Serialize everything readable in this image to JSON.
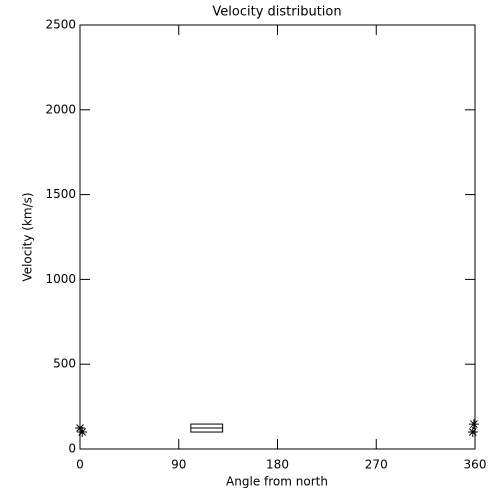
{
  "chart_data": {
    "type": "scatter",
    "title": "Velocity distribution",
    "x_label": "Angle from north",
    "y_label": "Velocity (km/s)",
    "series": [
      {
        "x": [
          0,
          2,
          358,
          359
        ],
        "values": [
          124,
          100,
          100,
          147
        ],
        "color": "#000000"
      }
    ],
    "box": {
      "x": [
        101,
        130
      ],
      "y": [
        100,
        147
      ],
      "middle": 124
    },
    "xlim": [
      0,
      360
    ],
    "xticks": [
      0,
      90,
      180,
      270,
      360
    ],
    "ylim": [
      0,
      2500
    ],
    "yticks": [
      0,
      500,
      1000,
      1500,
      2000,
      2500
    ]
  }
}
